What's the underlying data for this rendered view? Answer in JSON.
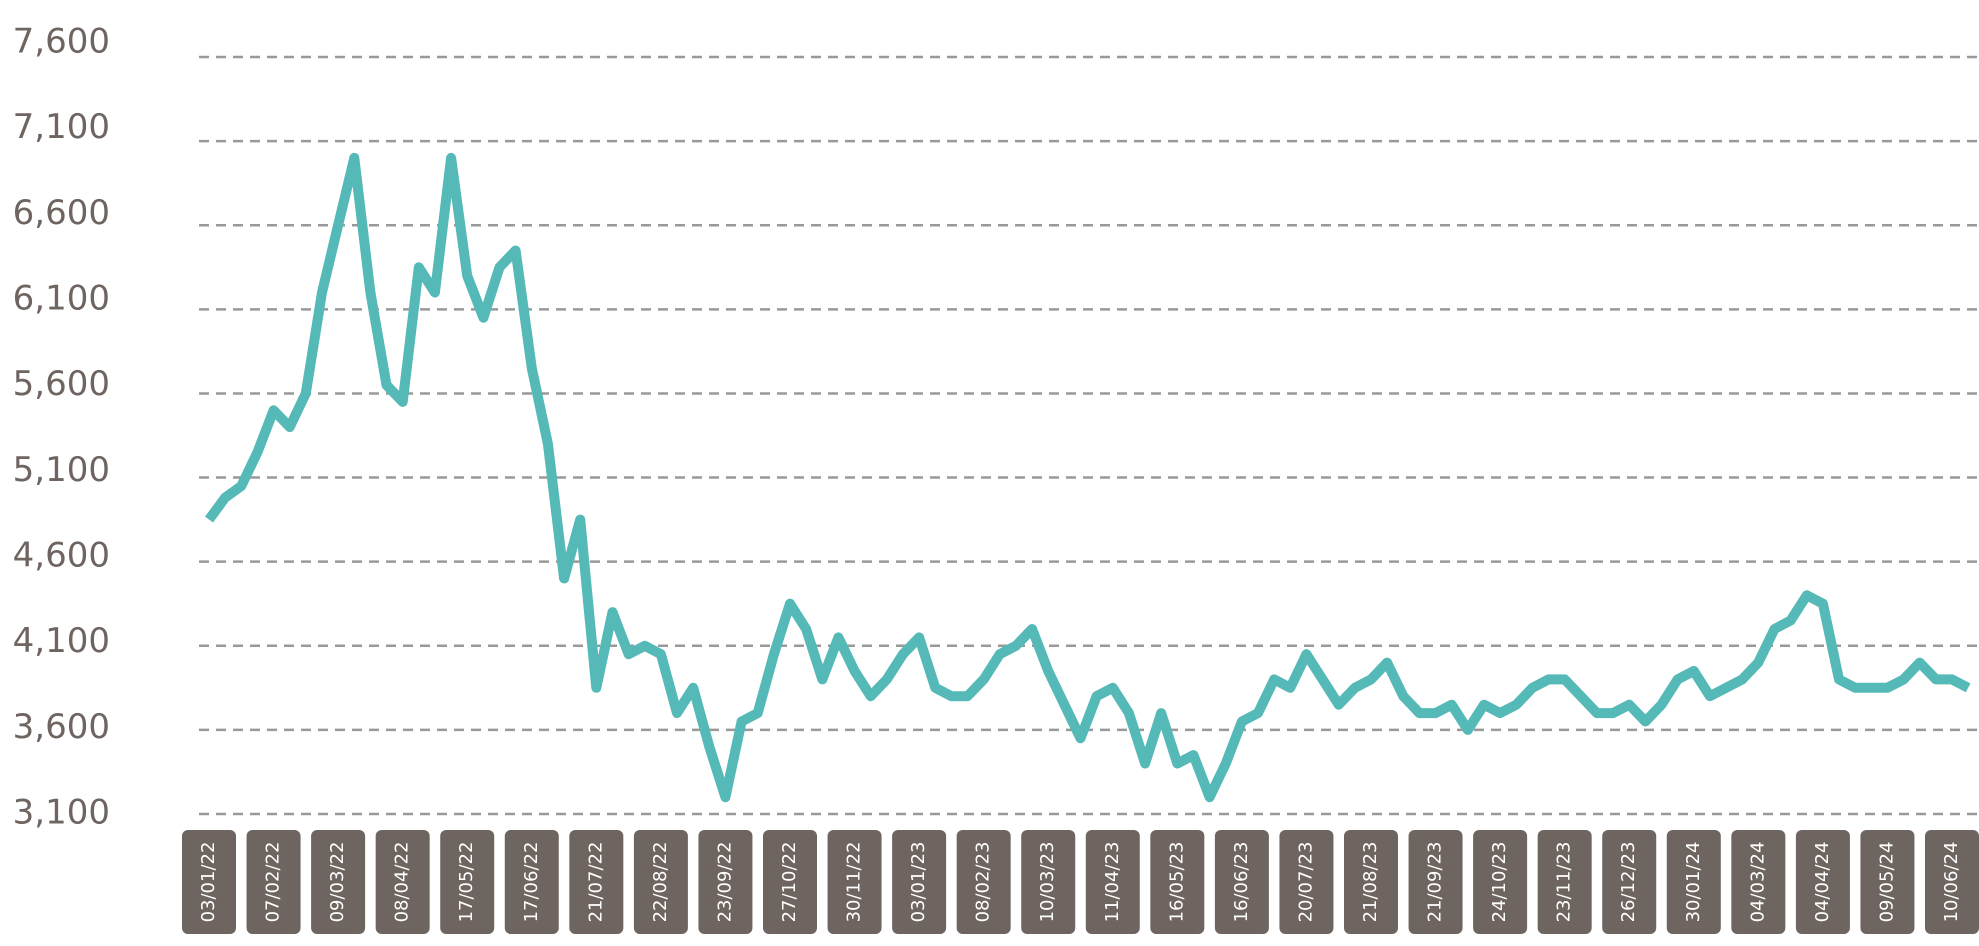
{
  "chart_data": {
    "type": "line",
    "color": "#55b9b7",
    "grid": true,
    "ylim": [
      3100,
      7600
    ],
    "yticks": [
      {
        "value": 3100,
        "label": "3,100"
      },
      {
        "value": 3600,
        "label": "3,600"
      },
      {
        "value": 4100,
        "label": "4,100"
      },
      {
        "value": 4600,
        "label": "4,600"
      },
      {
        "value": 5100,
        "label": "5,100"
      },
      {
        "value": 5600,
        "label": "5,600"
      },
      {
        "value": 6100,
        "label": "6,100"
      },
      {
        "value": 6600,
        "label": "6,600"
      },
      {
        "value": 7100,
        "label": "7,100"
      },
      {
        "value": 7600,
        "label": "7,600"
      }
    ],
    "categories": [
      "03/01/22",
      null,
      null,
      null,
      "07/02/22",
      null,
      null,
      null,
      "09/03/22",
      null,
      null,
      null,
      "08/04/22",
      null,
      null,
      null,
      "17/05/22",
      null,
      null,
      null,
      "17/06/22",
      null,
      null,
      null,
      "21/07/22",
      null,
      null,
      null,
      "22/08/22",
      null,
      null,
      null,
      "23/09/22",
      null,
      null,
      null,
      "27/10/22",
      null,
      null,
      null,
      "30/11/22",
      null,
      null,
      null,
      "03/01/23",
      null,
      null,
      null,
      "08/02/23",
      null,
      null,
      null,
      "10/03/23",
      null,
      null,
      null,
      "11/04/23",
      null,
      null,
      null,
      "16/05/23",
      null,
      null,
      null,
      "16/06/23",
      null,
      null,
      null,
      "20/07/23",
      null,
      null,
      null,
      "21/08/23",
      null,
      null,
      null,
      "21/09/23",
      null,
      null,
      null,
      "24/10/23",
      null,
      null,
      null,
      "23/11/23",
      null,
      null,
      null,
      "26/12/23",
      null,
      null,
      null,
      "30/01/24",
      null,
      null,
      null,
      "04/03/24",
      null,
      null,
      null,
      "04/04/24",
      null,
      null,
      null,
      "09/05/24",
      null,
      null,
      null,
      "10/06/24",
      null
    ],
    "values": [
      4850,
      4980,
      5050,
      5250,
      5500,
      5400,
      5600,
      6200,
      6600,
      7000,
      6200,
      5650,
      5550,
      6350,
      6200,
      7000,
      6300,
      6050,
      6350,
      6450,
      5750,
      5300,
      4500,
      4850,
      3850,
      4300,
      4050,
      4100,
      4050,
      3700,
      3850,
      3500,
      3200,
      3650,
      3700,
      4050,
      4350,
      4200,
      3900,
      4150,
      3950,
      3800,
      3900,
      4050,
      4150,
      3850,
      3800,
      3800,
      3900,
      4050,
      4100,
      4200,
      3950,
      3750,
      3550,
      3800,
      3850,
      3700,
      3400,
      3700,
      3400,
      3450,
      3200,
      3400,
      3650,
      3700,
      3900,
      3850,
      4050,
      3900,
      3750,
      3850,
      3900,
      4000,
      3800,
      3700,
      3700,
      3750,
      3600,
      3750,
      3700,
      3750,
      3850,
      3900,
      3900,
      3800,
      3700,
      3700,
      3750,
      3650,
      3750,
      3900,
      3950,
      3800,
      3850,
      3900,
      4000,
      4200,
      4250,
      4400,
      4350,
      3900,
      3850,
      3850,
      3850,
      3900,
      4000,
      3900,
      3900,
      3850
    ]
  }
}
